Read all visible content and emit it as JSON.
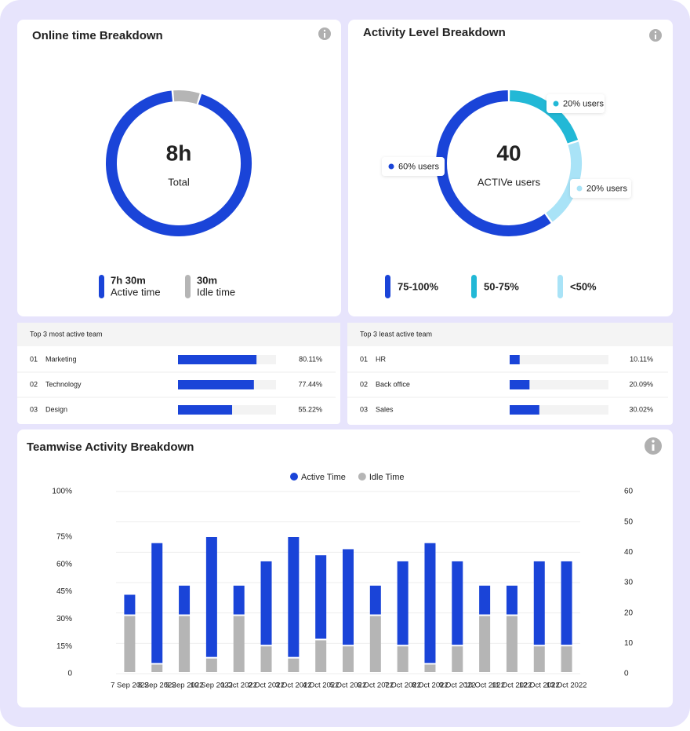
{
  "chart_data": [
    {
      "type": "donut",
      "title": "Online time Breakdown",
      "center_value": "8h",
      "center_label": "Total",
      "categories": [
        "Active time",
        "Idle time"
      ],
      "values": [
        7.5,
        0.5
      ],
      "value_labels": [
        "7h 30m",
        "30m"
      ],
      "colors": [
        "#1a44d8",
        "#b5b5b5"
      ]
    },
    {
      "type": "donut",
      "title": "Activity Level Breakdown",
      "center_value": 40,
      "center_label": "ACTIVe users",
      "categories": [
        "75-100%",
        "50-75%",
        "<50%"
      ],
      "values": [
        60,
        20,
        20
      ],
      "value_labels": [
        "60% users",
        "20% users",
        "20% users"
      ],
      "colors": [
        "#1a44d8",
        "#22b8d6",
        "#a9e3f7"
      ]
    },
    {
      "type": "bar",
      "stacked": true,
      "title": "Teamwise Activity Breakdown",
      "categories": [
        "7 Sep 2022",
        "8 Sep 2022",
        "9 Sep 2022",
        "10 Sep 2022",
        "1 Oct 2022",
        "2 Oct 2022",
        "3 Oct 2022",
        "4 Oct 2022",
        "5 Oct 2022",
        "6 Oct 2022",
        "7 Oct 2022",
        "8 Oct 2022",
        "9 Oct 2022",
        "10 Oct 2022",
        "11 Oct 2022",
        "12 Oct 2022",
        "13 Oct 2022"
      ],
      "series": [
        {
          "name": "Active Time",
          "color": "#1a44d8",
          "axis": "y2",
          "values": [
            7,
            40,
            10,
            40,
            10,
            28,
            40,
            28,
            32,
            10,
            28,
            40,
            28,
            10,
            10,
            28,
            28
          ]
        },
        {
          "name": "Idle Time",
          "color": "#b5b5b5",
          "axis": "y2",
          "values": [
            19,
            3,
            19,
            5,
            19,
            9,
            5,
            11,
            9,
            19,
            9,
            3,
            9,
            19,
            19,
            9,
            9
          ]
        }
      ],
      "ylim": [
        0,
        100
      ],
      "yticks": [
        0,
        {
          "value": 15,
          "label": "15%"
        },
        {
          "value": 30,
          "label": "30%"
        },
        {
          "value": 45,
          "label": "45%"
        },
        {
          "value": 60,
          "label": "60%"
        },
        {
          "value": 75,
          "label": "75%"
        },
        {
          "value": 100,
          "label": "100%"
        }
      ],
      "y2lim": [
        0,
        60
      ],
      "y2ticks": [
        0,
        10,
        20,
        30,
        40,
        50,
        60
      ],
      "grid": true
    }
  ],
  "tables": [
    {
      "title": "Top 3 most active team",
      "xlim": [
        0,
        100
      ],
      "rows": [
        {
          "rank": "01",
          "name": "Marketing",
          "value": 80.11,
          "value_label": "80.11%"
        },
        {
          "rank": "02",
          "name": "Technology",
          "value": 77.44,
          "value_label": "77.44%"
        },
        {
          "rank": "03",
          "name": "Design",
          "value": 55.22,
          "value_label": "55.22%"
        }
      ]
    },
    {
      "title": "Top 3 least active team",
      "xlim": [
        0,
        100
      ],
      "rows": [
        {
          "rank": "01",
          "name": "HR",
          "value": 10.11,
          "value_label": "10.11%"
        },
        {
          "rank": "02",
          "name": "Back office",
          "value": 20.09,
          "value_label": "20.09%"
        },
        {
          "rank": "03",
          "name": "Sales",
          "value": 30.02,
          "value_label": "30.02%"
        }
      ]
    }
  ]
}
